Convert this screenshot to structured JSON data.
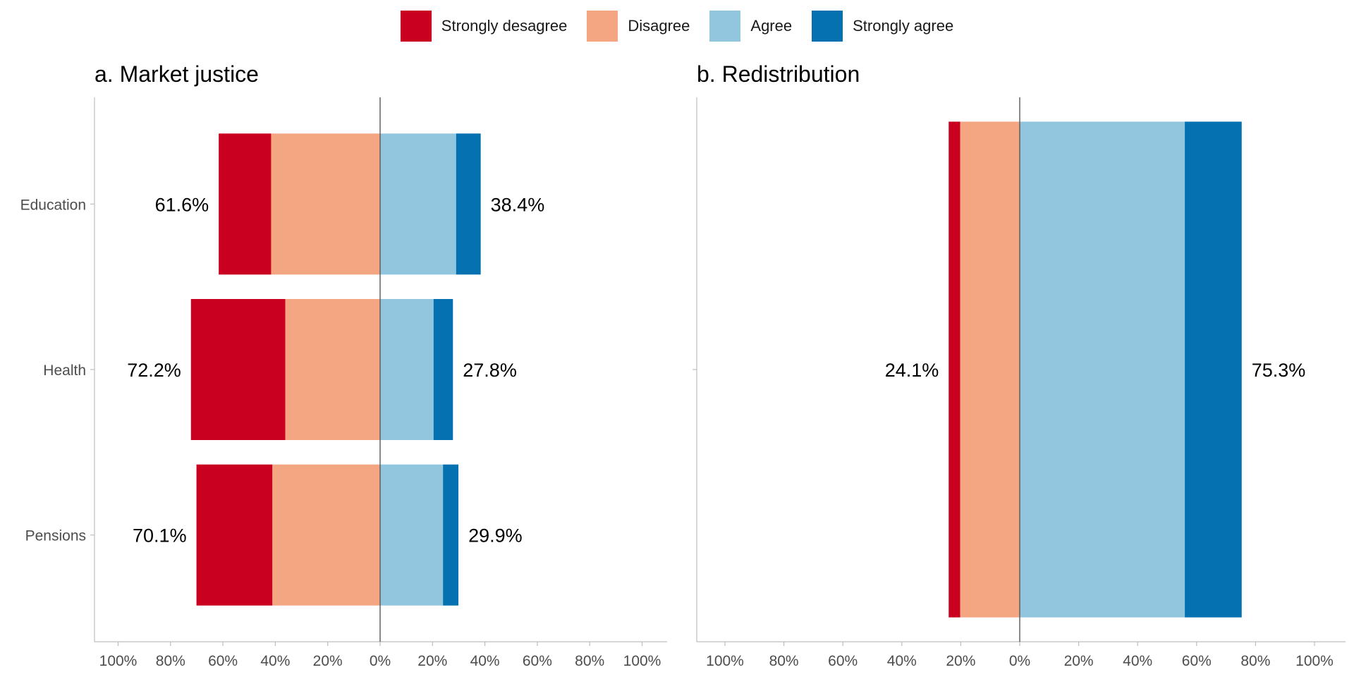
{
  "legend": {
    "items": [
      {
        "label": "Strongly desagree",
        "color": "#ca0020"
      },
      {
        "label": "Disagree",
        "color": "#f4a582"
      },
      {
        "label": "Agree",
        "color": "#92c5de"
      },
      {
        "label": "Strongly agree",
        "color": "#0571b0"
      }
    ]
  },
  "chart_data": [
    {
      "type": "bar",
      "orientation": "horizontal-diverging",
      "title": "a. Market justice",
      "categories": [
        "Education",
        "Health",
        "Pensions"
      ],
      "xlim": [
        -100,
        100
      ],
      "x_ticks": [
        "100%",
        "80%",
        "60%",
        "40%",
        "20%",
        "0%",
        "20%",
        "40%",
        "60%",
        "80%",
        "100%"
      ],
      "series": [
        {
          "name": "Strongly desagree",
          "values": [
            20.0,
            36.0,
            29.0
          ]
        },
        {
          "name": "Disagree",
          "values": [
            41.6,
            36.2,
            41.1
          ]
        },
        {
          "name": "Agree",
          "values": [
            29.0,
            20.4,
            24.0
          ]
        },
        {
          "name": "Strongly agree",
          "values": [
            9.4,
            7.4,
            5.9
          ]
        }
      ],
      "totals_disagree": [
        "61.6%",
        "72.2%",
        "70.1%"
      ],
      "totals_agree": [
        "38.4%",
        "27.8%",
        "29.9%"
      ]
    },
    {
      "type": "bar",
      "orientation": "horizontal-diverging",
      "title": "b. Redistribution",
      "categories": [
        ""
      ],
      "xlim": [
        -100,
        100
      ],
      "x_ticks": [
        "100%",
        "80%",
        "60%",
        "40%",
        "20%",
        "0%",
        "20%",
        "40%",
        "60%",
        "80%",
        "100%"
      ],
      "series": [
        {
          "name": "Strongly desagree",
          "values": [
            3.9
          ]
        },
        {
          "name": "Disagree",
          "values": [
            20.2
          ]
        },
        {
          "name": "Agree",
          "values": [
            56.0
          ]
        },
        {
          "name": "Strongly agree",
          "values": [
            19.3
          ]
        }
      ],
      "totals_disagree": [
        "24.1%"
      ],
      "totals_agree": [
        "75.3%"
      ]
    }
  ]
}
